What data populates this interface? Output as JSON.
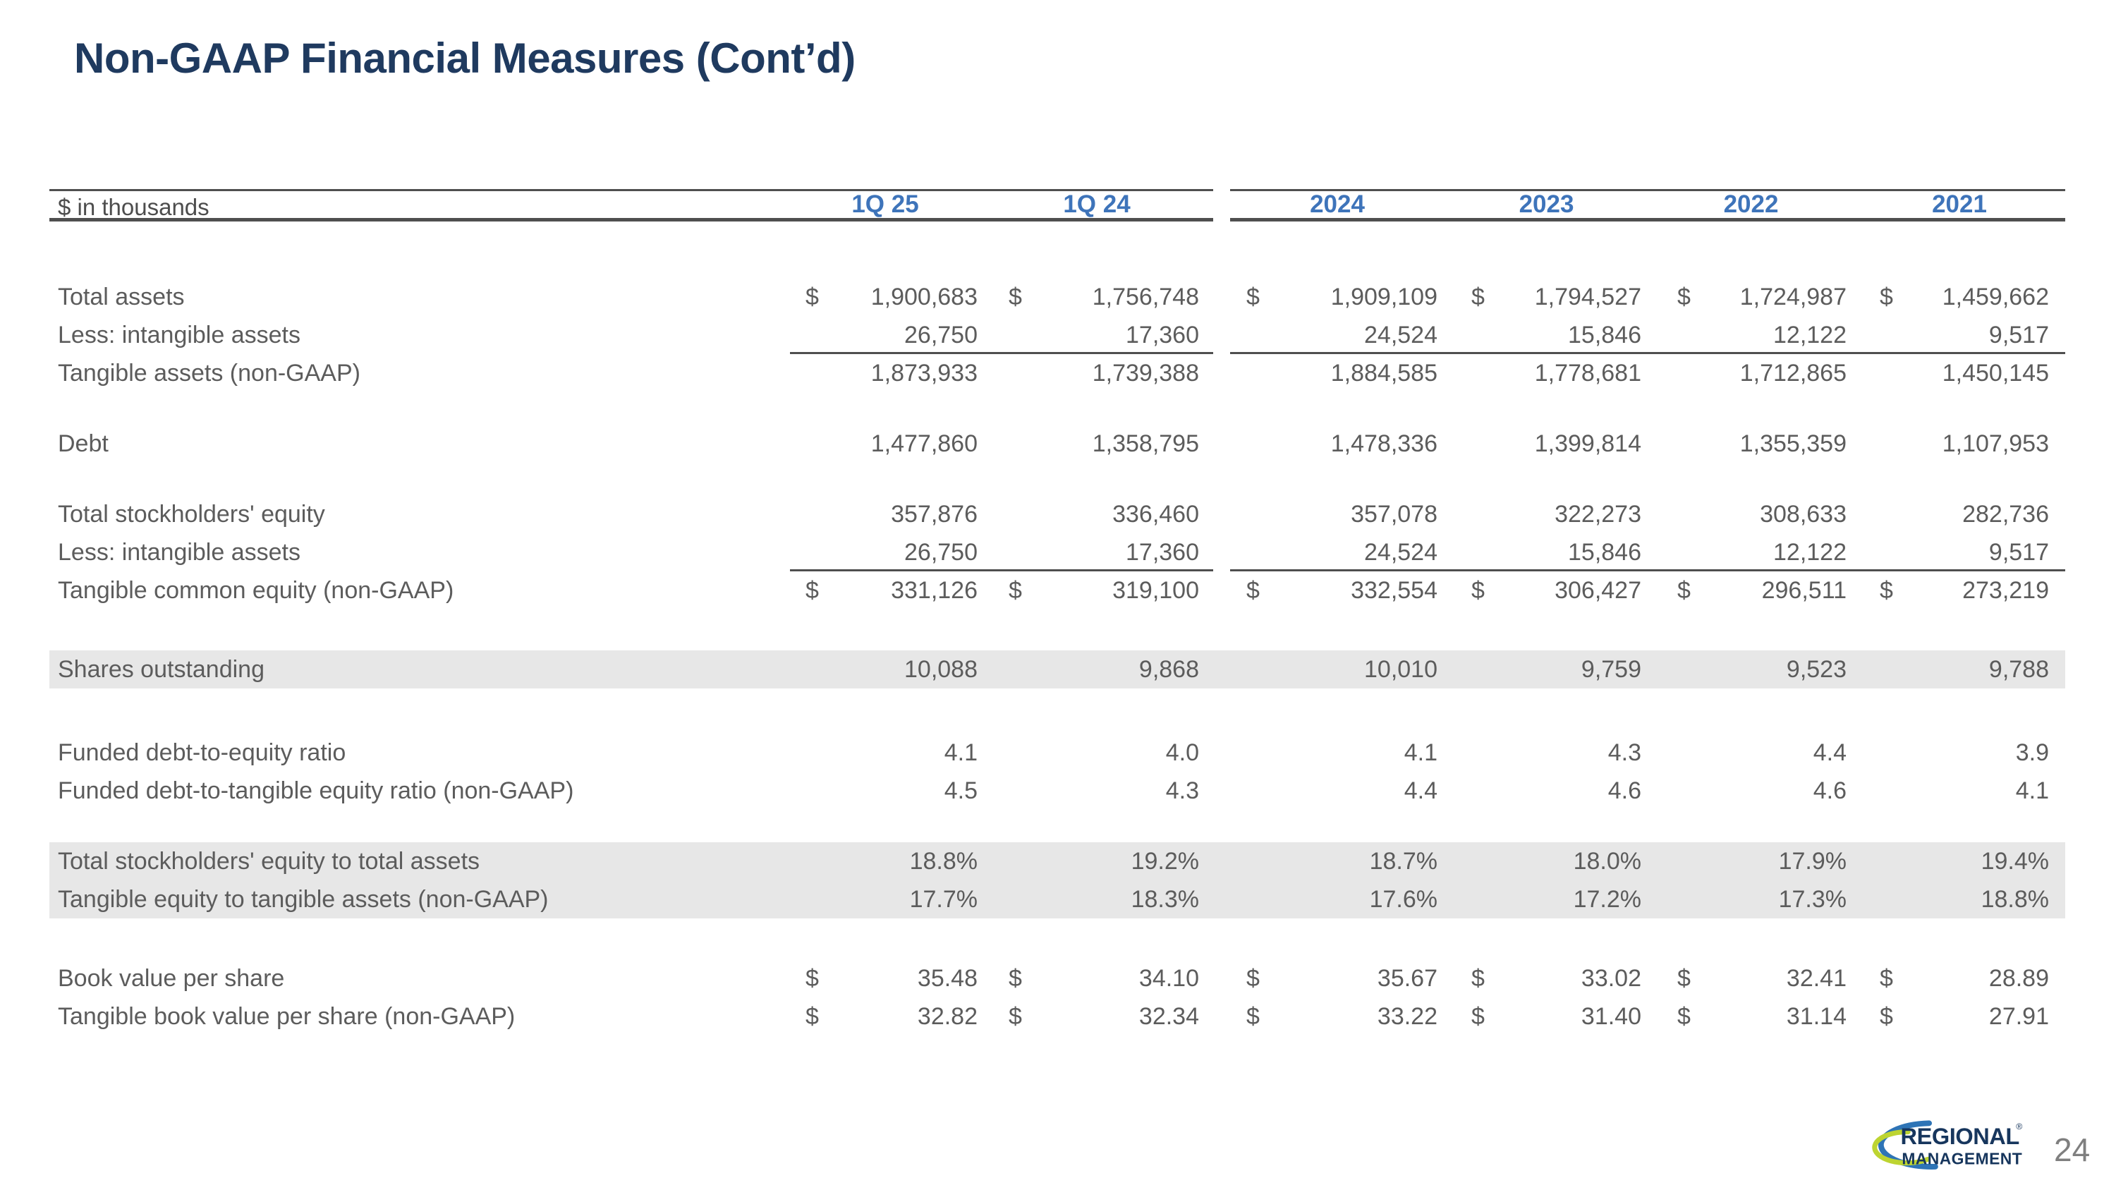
{
  "title": "Non-GAAP Financial Measures (Cont’d)",
  "page_number": "24",
  "logo": {
    "line1": "REGIONAL",
    "registered_mark": "®",
    "line2": "MANAGEMENT"
  },
  "colors": {
    "title_navy": "#1f3a5f",
    "header_blue": "#3e74ba",
    "body_text_gray": "#5c5c5c",
    "rule_gray": "#4f4f4f",
    "shaded_band": "#e7e7e7",
    "logo_navy": "#17365d",
    "logo_arc_blue": "#2e74b6",
    "logo_arc_green": "#bdd431"
  },
  "table": {
    "unit_label": "$ in thousands",
    "columns": [
      "1Q 25",
      "1Q 24",
      "2024",
      "2023",
      "2022",
      "2021"
    ],
    "rows": [
      {
        "label": "Total assets",
        "dollar": true,
        "underline": false,
        "shaded": false,
        "values": [
          "1,900,683",
          "1,756,748",
          "1,909,109",
          "1,794,527",
          "1,724,987",
          "1,459,662"
        ]
      },
      {
        "label": "Less: intangible assets",
        "dollar": false,
        "underline": true,
        "shaded": false,
        "values": [
          "26,750",
          "17,360",
          "24,524",
          "15,846",
          "12,122",
          "9,517"
        ]
      },
      {
        "label": "Tangible assets (non-GAAP)",
        "dollar": false,
        "underline": false,
        "shaded": false,
        "values": [
          "1,873,933",
          "1,739,388",
          "1,884,585",
          "1,778,681",
          "1,712,865",
          "1,450,145"
        ]
      },
      {
        "type": "spacer"
      },
      {
        "label": "Debt",
        "dollar": false,
        "underline": false,
        "shaded": false,
        "values": [
          "1,477,860",
          "1,358,795",
          "1,478,336",
          "1,399,814",
          "1,355,359",
          "1,107,953"
        ]
      },
      {
        "type": "spacer"
      },
      {
        "label": "Total stockholders' equity",
        "dollar": false,
        "underline": false,
        "shaded": false,
        "values": [
          "357,876",
          "336,460",
          "357,078",
          "322,273",
          "308,633",
          "282,736"
        ]
      },
      {
        "label": "Less: intangible assets",
        "dollar": false,
        "underline": true,
        "shaded": false,
        "values": [
          "26,750",
          "17,360",
          "24,524",
          "15,846",
          "12,122",
          "9,517"
        ]
      },
      {
        "label": "Tangible common equity (non-GAAP)",
        "dollar": true,
        "underline": false,
        "shaded": false,
        "values": [
          "331,126",
          "319,100",
          "332,554",
          "306,427",
          "296,511",
          "273,219"
        ]
      },
      {
        "type": "spacer"
      },
      {
        "label": "Shares outstanding",
        "dollar": false,
        "underline": false,
        "shaded": true,
        "values": [
          "10,088",
          "9,868",
          "10,010",
          "9,759",
          "9,523",
          "9,788"
        ]
      },
      {
        "type": "spacer"
      },
      {
        "label": "Funded debt-to-equity ratio",
        "dollar": false,
        "underline": false,
        "shaded": false,
        "values": [
          "4.1",
          "4.0",
          "4.1",
          "4.3",
          "4.4",
          "3.9"
        ]
      },
      {
        "label": "Funded debt-to-tangible equity ratio (non-GAAP)",
        "dollar": false,
        "underline": false,
        "shaded": false,
        "values": [
          "4.5",
          "4.3",
          "4.4",
          "4.6",
          "4.6",
          "4.1"
        ]
      },
      {
        "type": "spacer"
      },
      {
        "label": "Total stockholders' equity to total assets",
        "dollar": false,
        "underline": false,
        "shaded": true,
        "values": [
          "18.8%",
          "19.2%",
          "18.7%",
          "18.0%",
          "17.9%",
          "19.4%"
        ]
      },
      {
        "label": "Tangible equity to tangible assets (non-GAAP)",
        "dollar": false,
        "underline": false,
        "shaded": true,
        "values": [
          "17.7%",
          "18.3%",
          "17.6%",
          "17.2%",
          "17.3%",
          "18.8%"
        ]
      },
      {
        "type": "spacer"
      },
      {
        "label": "Book value per share",
        "dollar": true,
        "underline": false,
        "shaded": false,
        "values": [
          "35.48",
          "34.10",
          "35.67",
          "33.02",
          "32.41",
          "28.89"
        ]
      },
      {
        "label": "Tangible book value per share (non-GAAP)",
        "dollar": true,
        "underline": false,
        "shaded": false,
        "values": [
          "32.82",
          "32.34",
          "33.22",
          "31.40",
          "31.14",
          "27.91"
        ]
      }
    ]
  }
}
